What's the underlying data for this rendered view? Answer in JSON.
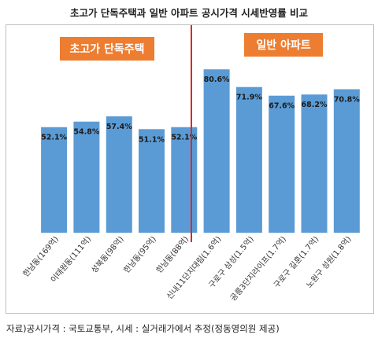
{
  "title": "초고가 단독주택과 일반 아파트 공시가격 시세반영률 비교",
  "source": "자료)공시가격 : 국토교통부, 시세 : 실거래가에서 추정(정동영의원 제공)",
  "group_labels": {
    "left": "초고가 단독주택",
    "right": "일반 아파트"
  },
  "colors": {
    "bar": "#5b9bd5",
    "badge": "#ed7d31",
    "divider": "#e0242a"
  },
  "chart_data": {
    "type": "bar",
    "title": "초고가 단독주택과 일반 아파트 공시가격 시세반영률 비교",
    "xlabel": "",
    "ylabel": "",
    "categories": [
      "한남동(169억)",
      "이태원동(111억)",
      "성북동(98억)",
      "한남동(95억)",
      "한남동(88억)",
      "신내11단지대림(1.6억)",
      "구로구 삼성(1.5억)",
      "공릉3단지라이프(1.7억)",
      "구로구 길훈(1.7억)",
      "노원구 성원(1.8억)"
    ],
    "values": [
      52.1,
      54.8,
      57.4,
      51.1,
      52.1,
      80.6,
      71.9,
      67.6,
      68.2,
      70.8
    ],
    "data_labels": [
      "52.1%",
      "54.8%",
      "57.4%",
      "51.1%",
      "52.1%",
      "80.6%",
      "71.9%",
      "67.6%",
      "68.2%",
      "70.8%"
    ],
    "ylim": [
      0,
      90
    ],
    "grid": false,
    "legend": "none"
  }
}
